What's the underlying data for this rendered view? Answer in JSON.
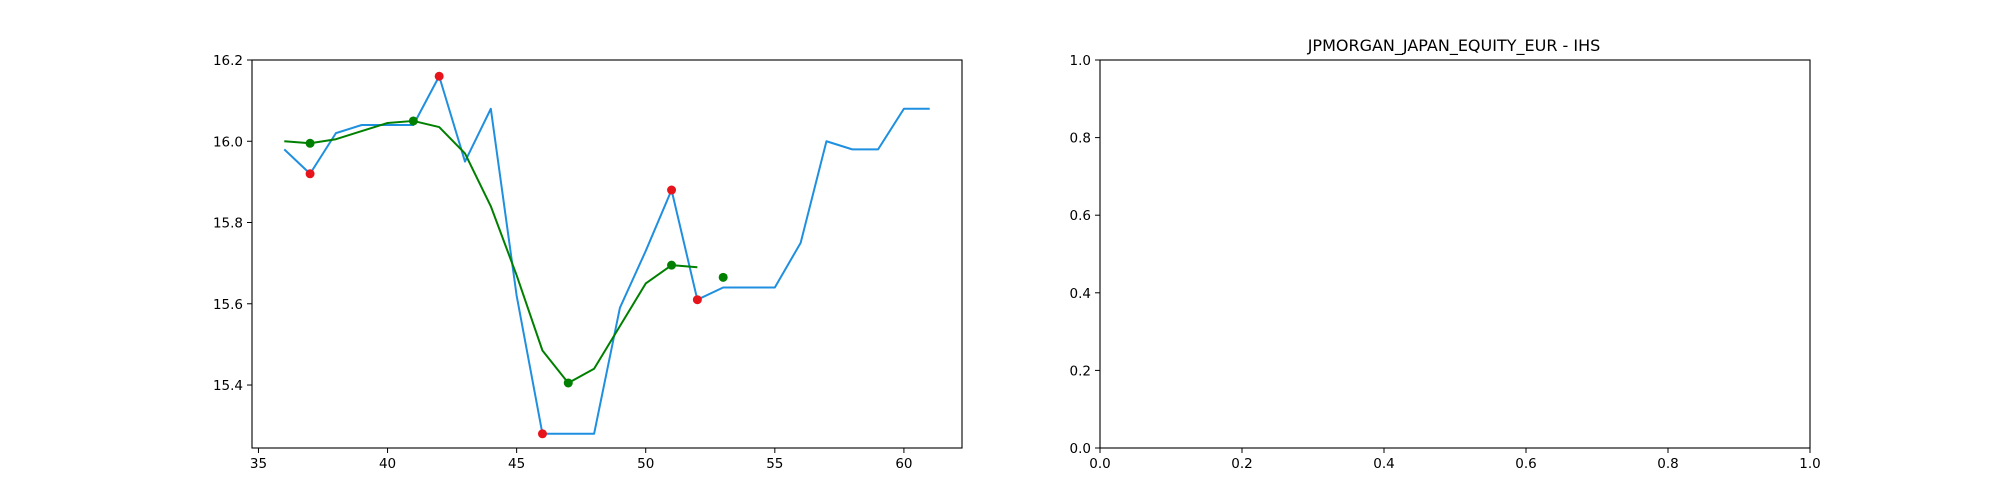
{
  "chart_data": [
    {
      "type": "line",
      "title": "",
      "xlabel": "",
      "ylabel": "",
      "xlim": [
        34.75,
        62.25
      ],
      "ylim": [
        15.245,
        16.2
      ],
      "xticks": [
        35,
        40,
        45,
        50,
        55,
        60
      ],
      "yticks": [
        15.4,
        15.6,
        15.8,
        16.0,
        16.2
      ],
      "ytick_labels": [
        "15.4",
        "15.6",
        "15.8",
        "16.0",
        "16.2"
      ],
      "grid": false,
      "series": [
        {
          "style": "line",
          "color": "#1f8fe0",
          "x": [
            36,
            37,
            38,
            39,
            40,
            41,
            42,
            43,
            44,
            45,
            46,
            47,
            48,
            49,
            50,
            51,
            52,
            53,
            54,
            55,
            56,
            57,
            58,
            59,
            60,
            61
          ],
          "y": [
            15.98,
            15.92,
            16.02,
            16.04,
            16.04,
            16.04,
            16.16,
            15.95,
            16.08,
            15.62,
            15.28,
            15.28,
            15.28,
            15.59,
            15.73,
            15.88,
            15.61,
            15.64,
            15.64,
            15.64,
            15.75,
            16.0,
            15.98,
            15.98,
            16.08,
            16.08
          ]
        },
        {
          "style": "line",
          "color": "#008000",
          "x": [
            36,
            37,
            38,
            39,
            40,
            41,
            42,
            43,
            44,
            45,
            46,
            47,
            48,
            49,
            50,
            51,
            52
          ],
          "y": [
            16.0,
            15.995,
            16.005,
            16.025,
            16.045,
            16.05,
            16.035,
            15.97,
            15.84,
            15.67,
            15.485,
            15.405,
            15.44,
            15.545,
            15.65,
            15.695,
            15.69
          ]
        },
        {
          "style": "scatter",
          "color": "#e8141c",
          "x": [
            37,
            42,
            46,
            51,
            52
          ],
          "y": [
            15.92,
            16.16,
            15.28,
            15.88,
            15.61
          ]
        },
        {
          "style": "scatter",
          "color": "#008000",
          "x": [
            37,
            41,
            47,
            51,
            53
          ],
          "y": [
            15.995,
            16.05,
            15.405,
            15.695,
            15.665
          ]
        }
      ]
    },
    {
      "type": "line",
      "title": "JPMORGAN_JAPAN_EQUITY_EUR - IHS",
      "xlabel": "",
      "ylabel": "",
      "xlim": [
        0,
        1
      ],
      "ylim": [
        0,
        1
      ],
      "xticks": [
        0,
        0.2,
        0.4,
        0.6,
        0.8,
        1.0
      ],
      "xtick_labels": [
        "0.0",
        "0.2",
        "0.4",
        "0.6",
        "0.8",
        "1.0"
      ],
      "yticks": [
        0,
        0.2,
        0.4,
        0.6,
        0.8,
        1.0
      ],
      "ytick_labels": [
        "0.0",
        "0.2",
        "0.4",
        "0.6",
        "0.8",
        "1.0"
      ],
      "grid": false,
      "series": []
    }
  ]
}
